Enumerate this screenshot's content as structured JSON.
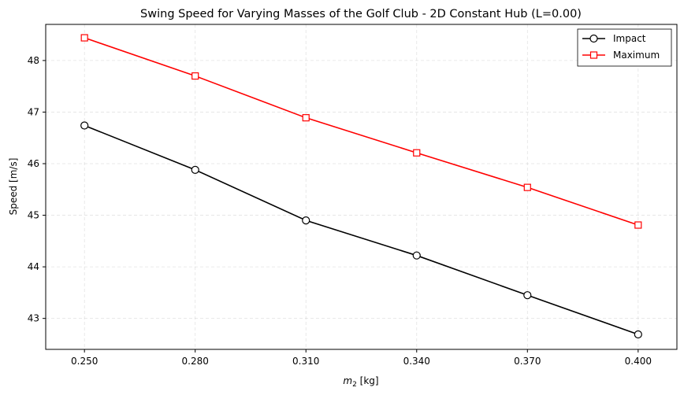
{
  "chart_data": {
    "type": "line",
    "title": "Swing Speed for Varying Masses of the Golf Club - 2D Constant Hub (L=0.00)",
    "xlabel_main": "m",
    "xlabel_sub": "2",
    "xlabel_unit": " [kg]",
    "ylabel": "Speed [m/s]",
    "x": [
      0.25,
      0.28,
      0.31,
      0.34,
      0.37,
      0.4
    ],
    "x_tick_labels": [
      "0.250",
      "0.280",
      "0.310",
      "0.340",
      "0.370",
      "0.400"
    ],
    "y_ticks": [
      43,
      44,
      45,
      46,
      47,
      48
    ],
    "y_tick_labels": [
      "43",
      "44",
      "45",
      "46",
      "47",
      "48"
    ],
    "xlim": [
      0.2395,
      0.4105
    ],
    "ylim": [
      42.4,
      48.7
    ],
    "grid": true,
    "legend_position": "top-right",
    "series": [
      {
        "name": "Impact",
        "color": "#000000",
        "marker": "circle",
        "values": [
          46.74,
          45.88,
          44.9,
          44.22,
          43.45,
          42.69
        ]
      },
      {
        "name": "Maximum",
        "color": "#ff0000",
        "marker": "square",
        "values": [
          48.44,
          47.7,
          46.89,
          46.21,
          45.54,
          44.81
        ]
      }
    ]
  }
}
